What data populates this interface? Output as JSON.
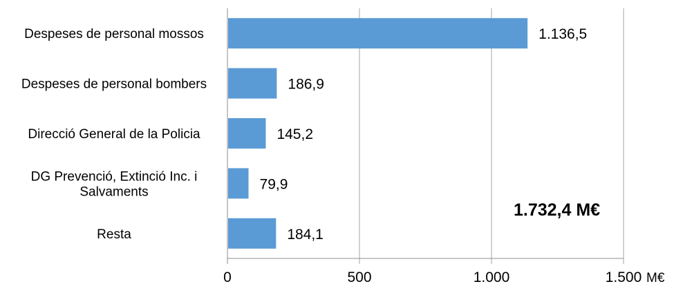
{
  "chart_data": {
    "type": "bar",
    "orientation": "horizontal",
    "categories": [
      "Despeses de personal mossos",
      "Despeses de personal bombers",
      "Direcció General de la Policia",
      "DG Prevenció, Extinció Inc. i Salvaments",
      "Resta"
    ],
    "category_lines": [
      [
        "Despeses de personal mossos"
      ],
      [
        "Despeses de personal bombers"
      ],
      [
        "Direcció General de la Policia"
      ],
      [
        "DG Prevenció, Extinció Inc. i",
        "Salvaments"
      ],
      [
        "Resta"
      ]
    ],
    "values": [
      1136.5,
      186.9,
      145.2,
      79.9,
      184.1
    ],
    "value_labels": [
      "1.136,5",
      "186,9",
      "145,2",
      "79,9",
      "184,1"
    ],
    "xlim": [
      0,
      1500
    ],
    "xticks": [
      0,
      500,
      1000,
      1500
    ],
    "xtick_labels": [
      "0",
      "500",
      "1.000",
      "1.500"
    ],
    "xunit": "M€",
    "grid": true,
    "annotation": "1.732,4 M€",
    "bar_color": "#5b9bd5"
  }
}
